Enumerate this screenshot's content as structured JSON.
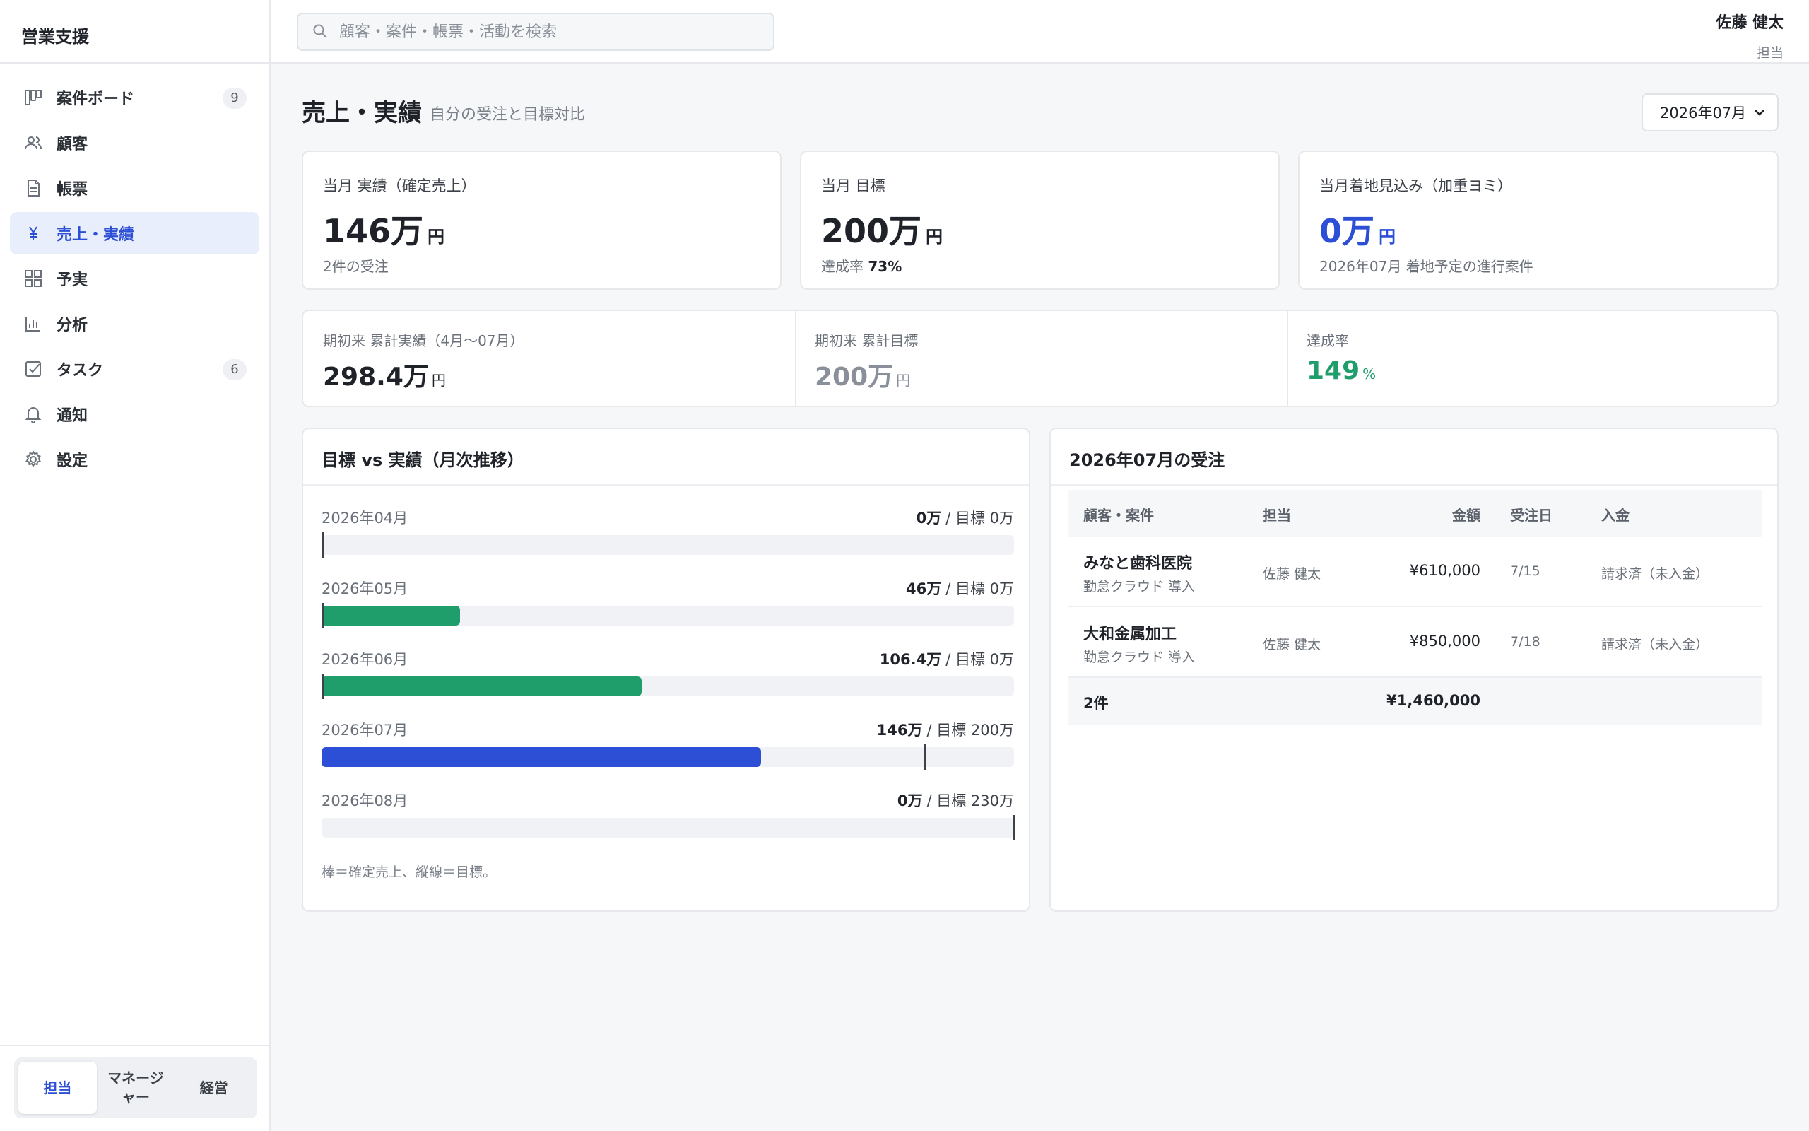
{
  "app": {
    "title": "営業支援"
  },
  "sidebar": {
    "items": [
      {
        "label": "案件ボード",
        "badge": "9",
        "icon": "kanban-icon"
      },
      {
        "label": "顧客",
        "badge": null,
        "icon": "users-icon"
      },
      {
        "label": "帳票",
        "badge": null,
        "icon": "document-icon"
      },
      {
        "label": "売上・実績",
        "badge": null,
        "icon": "yen-icon",
        "active": true
      },
      {
        "label": "予実",
        "badge": null,
        "icon": "dashboard-icon"
      },
      {
        "label": "分析",
        "badge": null,
        "icon": "bar-chart-icon"
      },
      {
        "label": "タスク",
        "badge": "6",
        "icon": "checkbox-icon"
      },
      {
        "label": "通知",
        "badge": null,
        "icon": "bell-icon"
      },
      {
        "label": "設定",
        "badge": null,
        "icon": "gear-icon"
      }
    ],
    "roles": [
      {
        "label": "担当",
        "active": true
      },
      {
        "label": "マネージャー",
        "active": false
      },
      {
        "label": "経営",
        "active": false
      }
    ]
  },
  "topbar": {
    "search_placeholder": "顧客・案件・帳票・活動を検索",
    "user_name": "佐藤 健太",
    "user_role": "担当"
  },
  "header": {
    "title": "売上・実績",
    "subtitle": "自分の受注と目標対比",
    "month_selected": "2026年07月"
  },
  "kpis": [
    {
      "label": "当月 実績（確定売上）",
      "value": "146万",
      "unit": "円",
      "note": "2件の受注",
      "note_strong": ""
    },
    {
      "label": "当月 目標",
      "value": "200万",
      "unit": "円",
      "note": "達成率 ",
      "note_strong": "73%"
    },
    {
      "label": "当月着地見込み（加重ヨミ）",
      "value": "0万",
      "unit": "円",
      "note": "2026年07月 着地予定の進行案件",
      "note_strong": ""
    }
  ],
  "cumulative": [
    {
      "label": "期初来 累計実績（4月〜07月）",
      "value": "298.4万",
      "unit": "円"
    },
    {
      "label": "期初来 累計目標",
      "value": "200万",
      "unit": "円"
    },
    {
      "label": "達成率",
      "value": "149",
      "unit": "%"
    }
  ],
  "trend": {
    "title": "目標 vs 実績（月次推移）",
    "note": "棒＝確定売上、縦線＝目標。",
    "scale_max": 230,
    "rows": [
      {
        "month": "2026年04月",
        "actual": 0,
        "target": 0,
        "actual_label": "0万",
        "target_label": "/ 目標 0万",
        "current": false
      },
      {
        "month": "2026年05月",
        "actual": 46,
        "target": 0,
        "actual_label": "46万",
        "target_label": "/ 目標 0万",
        "current": false
      },
      {
        "month": "2026年06月",
        "actual": 106.4,
        "target": 0,
        "actual_label": "106.4万",
        "target_label": "/ 目標 0万",
        "current": false
      },
      {
        "month": "2026年07月",
        "actual": 146,
        "target": 200,
        "actual_label": "146万",
        "target_label": "/ 目標 200万",
        "current": true
      },
      {
        "month": "2026年08月",
        "actual": 0,
        "target": 230,
        "actual_label": "0万",
        "target_label": "/ 目標 230万",
        "current": false
      }
    ]
  },
  "orders": {
    "title": "2026年07月の受注",
    "columns": [
      "顧客・案件",
      "担当",
      "金額",
      "受注日",
      "入金"
    ],
    "rows": [
      {
        "customer": "みなと歯科医院",
        "deal": "勤怠クラウド 導入",
        "owner": "佐藤 健太",
        "amount": "¥610,000",
        "date": "7/15",
        "payment": "請求済（未入金）"
      },
      {
        "customer": "大和金属加工",
        "deal": "勤怠クラウド 導入",
        "owner": "佐藤 健太",
        "amount": "¥850,000",
        "date": "7/18",
        "payment": "請求済（未入金）"
      }
    ],
    "footer": {
      "count": "2件",
      "total": "¥1,460,000"
    }
  },
  "colors": {
    "accent": "#2d4fd6",
    "success": "#1f9d6b",
    "bar_current": "#2d4fd6",
    "bar_past": "#1f9d6b"
  }
}
